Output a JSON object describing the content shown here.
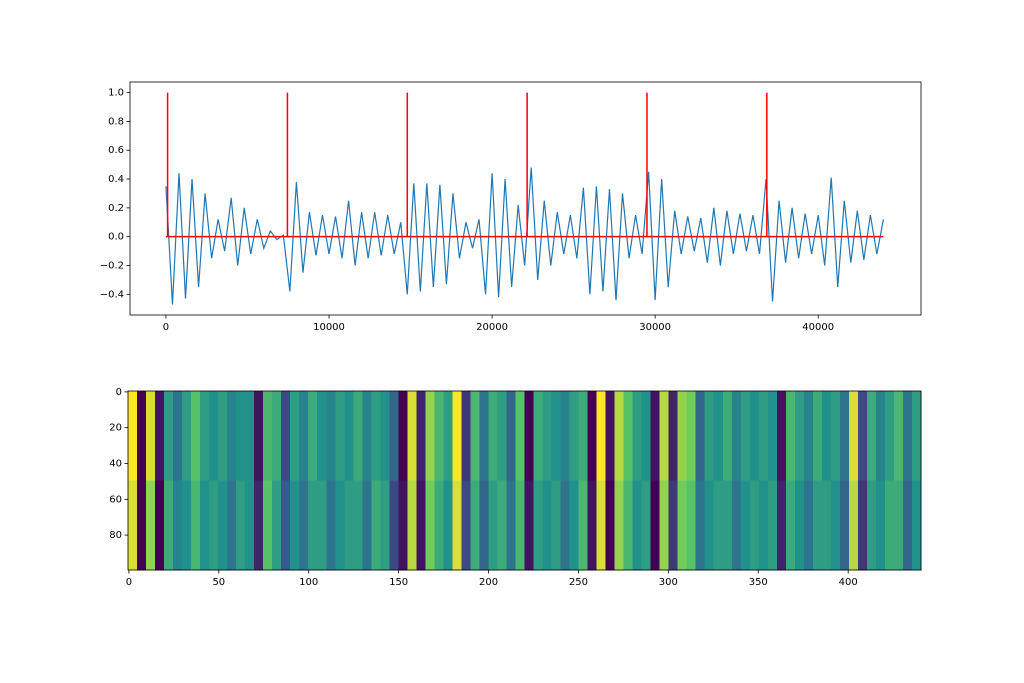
{
  "chart_data": [
    {
      "type": "line",
      "xlim": [
        -2205,
        46305
      ],
      "ylim": [
        -0.5435,
        1.0735
      ],
      "xticks": [
        0,
        10000,
        20000,
        30000,
        40000
      ],
      "yticks": [
        {
          "value": -0.4,
          "label": "−0.4"
        },
        {
          "value": -0.2,
          "label": "−0.2"
        },
        {
          "value": 0,
          "label": "0.0"
        },
        0.2,
        0.4,
        0.6,
        0.8,
        {
          "value": 1,
          "label": "1.0"
        }
      ],
      "grid": false,
      "series": [
        {
          "color": "#1f77b4",
          "x": [
            0,
            400,
            800,
            1200,
            1600,
            2000,
            2400,
            2800,
            3200,
            3600,
            4000,
            4400,
            4800,
            5200,
            5600,
            6000,
            6400,
            6800,
            7200,
            7600,
            8000,
            8400,
            8800,
            9200,
            9600,
            10000,
            10400,
            10800,
            11200,
            11600,
            12000,
            12400,
            12800,
            13200,
            13600,
            14000,
            14400,
            14800,
            15200,
            15600,
            16000,
            16400,
            16800,
            17200,
            17600,
            18000,
            18400,
            18800,
            19200,
            19600,
            20000,
            20400,
            20800,
            21200,
            21600,
            22000,
            22400,
            22800,
            23200,
            23600,
            24000,
            24400,
            24800,
            25200,
            25600,
            26000,
            26400,
            26800,
            27200,
            27600,
            28000,
            28400,
            28800,
            29200,
            29600,
            30000,
            30400,
            30800,
            31200,
            31600,
            32000,
            32400,
            32800,
            33200,
            33600,
            34000,
            34400,
            34800,
            35200,
            35600,
            36000,
            36400,
            36800,
            37200,
            37600,
            38000,
            38400,
            38800,
            39200,
            39600,
            40000,
            40400,
            40800,
            41200,
            41600,
            42000,
            42400,
            42800,
            43200,
            43600,
            44000
          ],
          "values": [
            0.35,
            -0.47,
            0.44,
            -0.43,
            0.4,
            -0.35,
            0.3,
            -0.15,
            0.12,
            -0.1,
            0.27,
            -0.2,
            0.2,
            -0.12,
            0.12,
            -0.08,
            0.04,
            -0.02,
            0.01,
            -0.38,
            0.38,
            -0.25,
            0.17,
            -0.13,
            0.15,
            -0.12,
            0.14,
            -0.15,
            0.25,
            -0.2,
            0.17,
            -0.15,
            0.17,
            -0.13,
            0.15,
            -0.12,
            0.1,
            -0.4,
            0.37,
            -0.38,
            0.37,
            -0.35,
            0.36,
            -0.33,
            0.3,
            -0.15,
            0.1,
            -0.08,
            0.12,
            -0.4,
            0.44,
            -0.42,
            0.4,
            -0.35,
            0.22,
            -0.2,
            0.48,
            -0.3,
            0.25,
            -0.2,
            0.17,
            -0.12,
            0.15,
            -0.15,
            0.34,
            -0.4,
            0.35,
            -0.38,
            0.33,
            -0.44,
            0.3,
            -0.15,
            0.15,
            -0.12,
            0.45,
            -0.44,
            0.4,
            -0.35,
            0.18,
            -0.12,
            0.14,
            -0.1,
            0.13,
            -0.18,
            0.2,
            -0.2,
            0.18,
            -0.12,
            0.16,
            -0.1,
            0.15,
            -0.12,
            0.4,
            -0.45,
            0.25,
            -0.18,
            0.2,
            -0.15,
            0.16,
            -0.12,
            0.15,
            -0.2,
            0.41,
            -0.35,
            0.25,
            -0.18,
            0.18,
            -0.16,
            0.15,
            -0.12,
            0.12
          ]
        }
      ],
      "stems": {
        "color": "#ff0000",
        "x": [
          100,
          7450,
          14800,
          22150,
          29500,
          36850
        ],
        "values": [
          1,
          1,
          1,
          1,
          1,
          1
        ]
      }
    },
    {
      "type": "heatmap",
      "colormap": "viridis",
      "xlim": [
        -0.5,
        440.5
      ],
      "ylim": [
        99.5,
        -0.5
      ],
      "xticks": [
        0,
        50,
        100,
        150,
        200,
        250,
        300,
        350,
        400
      ],
      "yticks": [
        0,
        20,
        40,
        60,
        80
      ],
      "z": [
        [
          0.9,
          -0.9,
          0.8,
          -0.8,
          0.1,
          -0.2,
          0.1,
          0.4,
          0.1,
          0,
          0.1,
          -0.1,
          0,
          0,
          -0.8,
          0.3,
          0.2,
          -0.5,
          0.1,
          -0.1,
          0.2,
          0,
          -0.1,
          0.1,
          0,
          0.2,
          -0.1,
          0.1,
          0,
          -0.3,
          -0.9,
          0.8,
          -0.7,
          0.6,
          0.3,
          0.1,
          0.9,
          -0.6,
          0.3,
          -0.2,
          0.2,
          0.1,
          -0.3,
          0.4,
          -0.9,
          0.2,
          0.1,
          0,
          -0.1,
          0.1,
          0.2,
          -0.9,
          0.9,
          -0.8,
          0.7,
          0.4,
          0.1,
          0,
          -0.8,
          0.7,
          -0.7,
          0.6,
          0.5,
          -0.3,
          0.1,
          0,
          0.2,
          -0.1,
          0.1,
          0,
          0.1,
          0,
          -0.8,
          0.3,
          0.1,
          -0.1,
          0.2,
          0,
          0.1,
          -0.2,
          0.8,
          -0.5,
          0.2,
          -0.1,
          0.1,
          0.3,
          -0.2,
          0.1
        ],
        [
          0.8,
          -0.9,
          0.6,
          -0.9,
          0.2,
          -0.1,
          0,
          0.3,
          0,
          0.1,
          0,
          -0.2,
          0.1,
          0,
          -0.7,
          0.4,
          0.1,
          -0.4,
          0,
          -0.2,
          0.1,
          0.1,
          -0.2,
          0,
          0.1,
          0.1,
          -0.2,
          0.2,
          0.1,
          -0.5,
          -0.8,
          0.7,
          -0.8,
          0.5,
          0.2,
          0,
          0.8,
          -0.5,
          0.2,
          -0.3,
          0.1,
          0.2,
          -0.2,
          0.3,
          -0.8,
          0.1,
          0,
          0.1,
          -0.2,
          0,
          0.3,
          -0.8,
          0.8,
          -0.9,
          0.6,
          0.3,
          0,
          0.1,
          -0.9,
          0.6,
          -0.6,
          0.5,
          0.4,
          -0.2,
          0,
          0.1,
          0.1,
          -0.2,
          0,
          0.1,
          0,
          0.1,
          -0.7,
          0.2,
          0,
          -0.2,
          0.1,
          0.1,
          0,
          -0.3,
          0.7,
          -0.6,
          0.1,
          0,
          0.2,
          0.2,
          -0.3,
          0
        ]
      ]
    }
  ]
}
